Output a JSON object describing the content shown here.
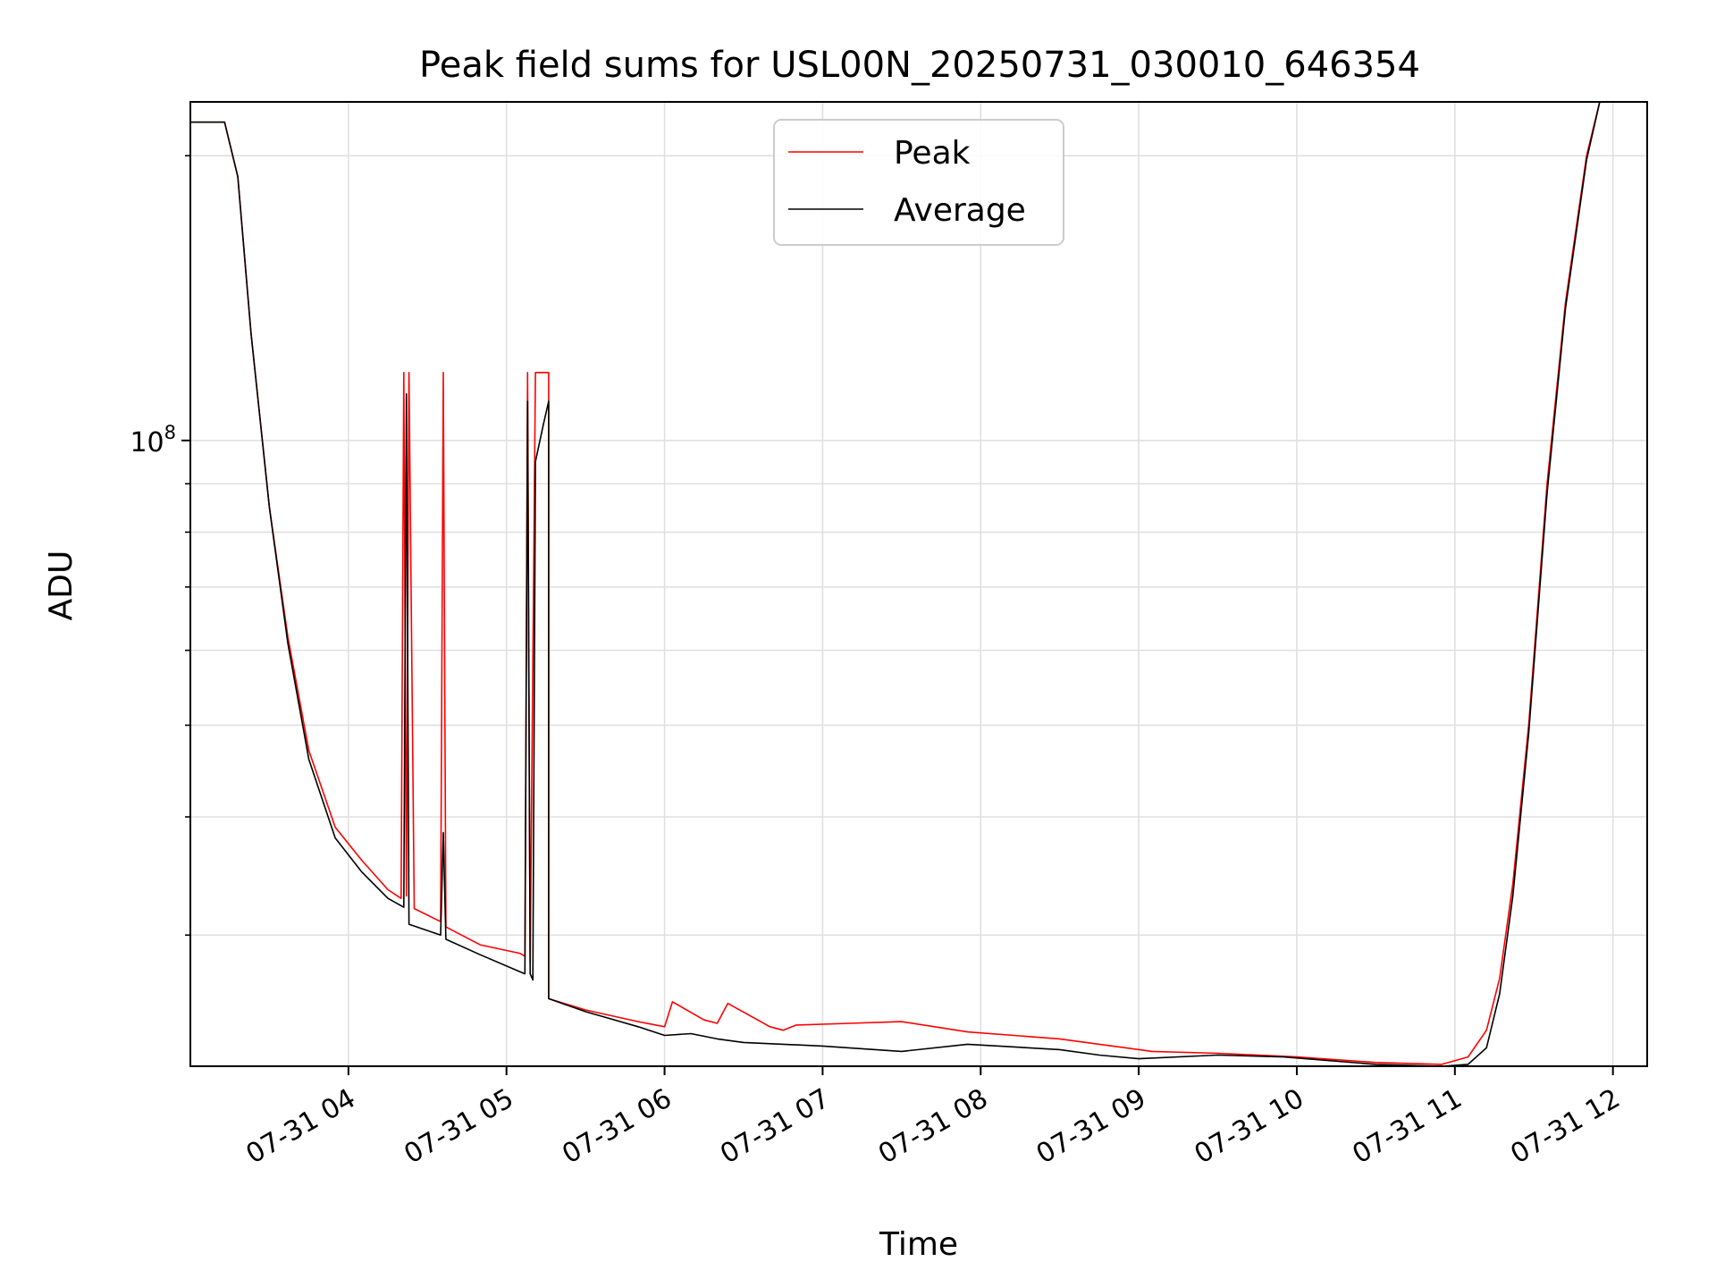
{
  "chart_data": {
    "type": "line",
    "title": "Peak field sums for USL00N_20250731_030010_646354",
    "xlabel": "Time",
    "ylabel": "ADU",
    "x_tick_labels": [
      "07-31 04",
      "07-31 05",
      "07-31 06",
      "07-31 07",
      "07-31 08",
      "07-31 09",
      "07-31 10",
      "07-31 11",
      "07-31 12"
    ],
    "y_tick_labels": [
      {
        "base": "10",
        "exp": "8"
      }
    ],
    "xlim": [
      "2025-07-31 03:00",
      "2025-07-31 12:13"
    ],
    "ylim": [
      21800000,
      228000000
    ],
    "yscale": "log",
    "grid": true,
    "legend": "upper center",
    "series": [
      {
        "name": "Peak",
        "color": "#ff0000",
        "points": [
          [
            "2025-07-31 03:00",
            217000000
          ],
          [
            "2025-07-31 03:13",
            217000000
          ],
          [
            "2025-07-31 03:18",
            190000000
          ],
          [
            "2025-07-31 03:23",
            130000000
          ],
          [
            "2025-07-31 03:30",
            85000000
          ],
          [
            "2025-07-31 03:37",
            62000000
          ],
          [
            "2025-07-31 03:45",
            47000000
          ],
          [
            "2025-07-31 03:55",
            39000000
          ],
          [
            "2025-07-31 04:05",
            36000000
          ],
          [
            "2025-07-31 04:15",
            33500000
          ],
          [
            "2025-07-31 04:20",
            32800000
          ],
          [
            "2025-07-31 04:21",
            118000000
          ],
          [
            "2025-07-31 04:22",
            33000000
          ],
          [
            "2025-07-31 04:23",
            118000000
          ],
          [
            "2025-07-31 04:25",
            32000000
          ],
          [
            "2025-07-31 04:35",
            31000000
          ],
          [
            "2025-07-31 04:36",
            118000000
          ],
          [
            "2025-07-31 04:37",
            30600000
          ],
          [
            "2025-07-31 04:50",
            29300000
          ],
          [
            "2025-07-31 05:05",
            28700000
          ],
          [
            "2025-07-31 05:07",
            28500000
          ],
          [
            "2025-07-31 05:08",
            118000000
          ],
          [
            "2025-07-31 05:09",
            28000000
          ],
          [
            "2025-07-31 05:11",
            118000000
          ],
          [
            "2025-07-31 05:16",
            118000000
          ],
          [
            "2025-07-31 05:16",
            25700000
          ],
          [
            "2025-07-31 05:30",
            25000000
          ],
          [
            "2025-07-31 05:50",
            24300000
          ],
          [
            "2025-07-31 06:00",
            24000000
          ],
          [
            "2025-07-31 06:03",
            25500000
          ],
          [
            "2025-07-31 06:15",
            24400000
          ],
          [
            "2025-07-31 06:20",
            24200000
          ],
          [
            "2025-07-31 06:24",
            25400000
          ],
          [
            "2025-07-31 06:40",
            24000000
          ],
          [
            "2025-07-31 06:45",
            23800000
          ],
          [
            "2025-07-31 06:50",
            24100000
          ],
          [
            "2025-07-31 07:10",
            24200000
          ],
          [
            "2025-07-31 07:30",
            24300000
          ],
          [
            "2025-07-31 07:55",
            23700000
          ],
          [
            "2025-07-31 08:30",
            23300000
          ],
          [
            "2025-07-31 08:45",
            23000000
          ],
          [
            "2025-07-31 09:05",
            22600000
          ],
          [
            "2025-07-31 09:30",
            22500000
          ],
          [
            "2025-07-31 10:00",
            22300000
          ],
          [
            "2025-07-31 10:30",
            22000000
          ],
          [
            "2025-07-31 10:55",
            21900000
          ],
          [
            "2025-07-31 11:05",
            22300000
          ],
          [
            "2025-07-31 11:12",
            23800000
          ],
          [
            "2025-07-31 11:17",
            27000000
          ],
          [
            "2025-07-31 11:22",
            34000000
          ],
          [
            "2025-07-31 11:28",
            50000000
          ],
          [
            "2025-07-31 11:35",
            90000000
          ],
          [
            "2025-07-31 11:42",
            140000000
          ],
          [
            "2025-07-31 11:50",
            200000000
          ],
          [
            "2025-07-31 11:55",
            228000000
          ]
        ]
      },
      {
        "name": "Average",
        "color": "#000000",
        "points": [
          [
            "2025-07-31 03:00",
            217000000
          ],
          [
            "2025-07-31 03:13",
            217000000
          ],
          [
            "2025-07-31 03:18",
            190000000
          ],
          [
            "2025-07-31 03:23",
            130000000
          ],
          [
            "2025-07-31 03:30",
            85000000
          ],
          [
            "2025-07-31 03:37",
            61000000
          ],
          [
            "2025-07-31 03:45",
            46000000
          ],
          [
            "2025-07-31 03:55",
            38000000
          ],
          [
            "2025-07-31 04:05",
            35000000
          ],
          [
            "2025-07-31 04:15",
            32800000
          ],
          [
            "2025-07-31 04:21",
            32100000
          ],
          [
            "2025-07-31 04:22",
            112000000
          ],
          [
            "2025-07-31 04:23",
            30800000
          ],
          [
            "2025-07-31 04:35",
            30000000
          ],
          [
            "2025-07-31 04:36",
            38500000
          ],
          [
            "2025-07-31 04:37",
            29700000
          ],
          [
            "2025-07-31 04:50",
            28600000
          ],
          [
            "2025-07-31 05:07",
            27300000
          ],
          [
            "2025-07-31 05:08",
            110000000
          ],
          [
            "2025-07-31 05:09",
            27300000
          ],
          [
            "2025-07-31 05:10",
            26900000
          ],
          [
            "2025-07-31 05:11",
            95000000
          ],
          [
            "2025-07-31 05:14",
            104000000
          ],
          [
            "2025-07-31 05:16",
            110000000
          ],
          [
            "2025-07-31 05:16",
            25700000
          ],
          [
            "2025-07-31 05:30",
            24900000
          ],
          [
            "2025-07-31 05:50",
            24000000
          ],
          [
            "2025-07-31 06:00",
            23500000
          ],
          [
            "2025-07-31 06:10",
            23600000
          ],
          [
            "2025-07-31 06:20",
            23300000
          ],
          [
            "2025-07-31 06:30",
            23100000
          ],
          [
            "2025-07-31 06:45",
            23000000
          ],
          [
            "2025-07-31 07:00",
            22900000
          ],
          [
            "2025-07-31 07:30",
            22600000
          ],
          [
            "2025-07-31 07:55",
            23000000
          ],
          [
            "2025-07-31 08:30",
            22700000
          ],
          [
            "2025-07-31 08:45",
            22400000
          ],
          [
            "2025-07-31 09:00",
            22200000
          ],
          [
            "2025-07-31 09:30",
            22400000
          ],
          [
            "2025-07-31 09:55",
            22300000
          ],
          [
            "2025-07-31 10:30",
            21900000
          ],
          [
            "2025-07-31 10:55",
            21800000
          ],
          [
            "2025-07-31 11:05",
            21900000
          ],
          [
            "2025-07-31 11:12",
            22800000
          ],
          [
            "2025-07-31 11:17",
            26000000
          ],
          [
            "2025-07-31 11:22",
            33000000
          ],
          [
            "2025-07-31 11:28",
            49000000
          ],
          [
            "2025-07-31 11:35",
            88000000
          ],
          [
            "2025-07-31 11:42",
            138000000
          ],
          [
            "2025-07-31 11:50",
            198000000
          ],
          [
            "2025-07-31 11:55",
            228000000
          ]
        ]
      }
    ]
  }
}
